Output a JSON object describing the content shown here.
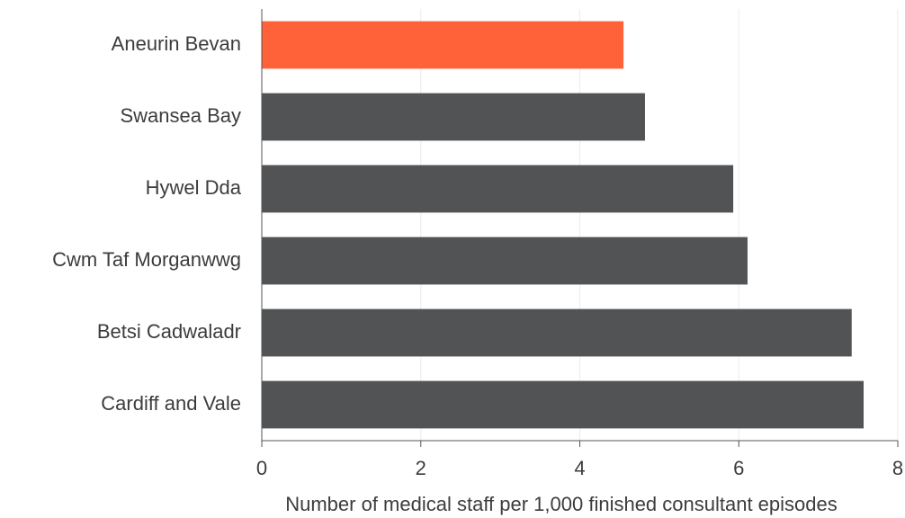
{
  "chart_data": {
    "type": "barh",
    "categories": [
      "Aneurin Bevan",
      "Swansea Bay",
      "Hywel Dda",
      "Cwm Taf Morganwwg",
      "Betsi Cadwaladr",
      "Cardiff and Vale"
    ],
    "values": [
      4.55,
      4.82,
      5.93,
      6.11,
      7.42,
      7.57
    ],
    "colors": [
      "#ff6138",
      "#525355",
      "#525355",
      "#525355",
      "#525355",
      "#525355"
    ],
    "xlabel": "Number of medical staff per 1,000 finished consultant episodes",
    "xlim": [
      0,
      8
    ],
    "xticks": [
      0,
      2,
      4,
      6,
      8
    ],
    "grid": true
  }
}
